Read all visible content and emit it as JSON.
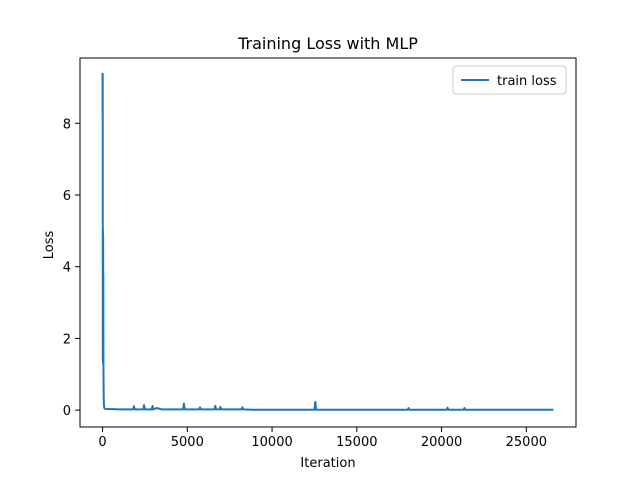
{
  "chart_data": {
    "type": "line",
    "title": "Training Loss with MLP",
    "xlabel": "Iteration",
    "ylabel": "Loss",
    "xlim": [
      -1330,
      27930
    ],
    "ylim": [
      -0.47,
      9.82
    ],
    "xticks": [
      0,
      5000,
      10000,
      15000,
      20000,
      25000
    ],
    "yticks": [
      0,
      2,
      4,
      6,
      8
    ],
    "grid": false,
    "legend_position": "top-right",
    "series": [
      {
        "name": "train loss",
        "color": "#1f77b4",
        "x": [
          0,
          5,
          10,
          15,
          20,
          25,
          30,
          35,
          40,
          45,
          50,
          60,
          70,
          80,
          100,
          150,
          300,
          600,
          1000,
          1500,
          1800,
          1850,
          1900,
          2100,
          2400,
          2450,
          2500,
          2700,
          2900,
          2950,
          3000,
          3200,
          3500,
          3800,
          4200,
          4600,
          4750,
          4800,
          4850,
          5200,
          5700,
          5750,
          5800,
          6200,
          6600,
          6650,
          6700,
          6900,
          6950,
          7000,
          7500,
          8000,
          8200,
          8250,
          8300,
          8800,
          9500,
          10200,
          10900,
          11600,
          12300,
          12500,
          12550,
          12600,
          12700,
          13300,
          14000,
          14700,
          15400,
          16100,
          16800,
          17500,
          18000,
          18050,
          18100,
          18800,
          19500,
          20200,
          20300,
          20350,
          20400,
          21000,
          21300,
          21350,
          21400,
          22100,
          22800,
          23500,
          24200,
          24900,
          25600,
          26300,
          26600
        ],
        "y": [
          9.4,
          8.2,
          9.35,
          1.4,
          5.05,
          3.9,
          1.3,
          4.9,
          2.2,
          3.8,
          1.5,
          0.8,
          0.4,
          0.15,
          0.06,
          0.04,
          0.03,
          0.03,
          0.02,
          0.02,
          0.02,
          0.11,
          0.02,
          0.02,
          0.02,
          0.14,
          0.02,
          0.02,
          0.02,
          0.12,
          0.02,
          0.06,
          0.02,
          0.02,
          0.02,
          0.02,
          0.02,
          0.18,
          0.02,
          0.02,
          0.02,
          0.08,
          0.02,
          0.02,
          0.02,
          0.12,
          0.02,
          0.02,
          0.09,
          0.02,
          0.02,
          0.02,
          0.02,
          0.08,
          0.02,
          0.01,
          0.01,
          0.01,
          0.01,
          0.01,
          0.01,
          0.01,
          0.23,
          0.01,
          0.01,
          0.01,
          0.01,
          0.01,
          0.01,
          0.01,
          0.01,
          0.01,
          0.01,
          0.06,
          0.01,
          0.01,
          0.01,
          0.01,
          0.01,
          0.07,
          0.01,
          0.01,
          0.01,
          0.06,
          0.01,
          0.01,
          0.01,
          0.01,
          0.01,
          0.01,
          0.01,
          0.01,
          0.01
        ]
      }
    ]
  }
}
